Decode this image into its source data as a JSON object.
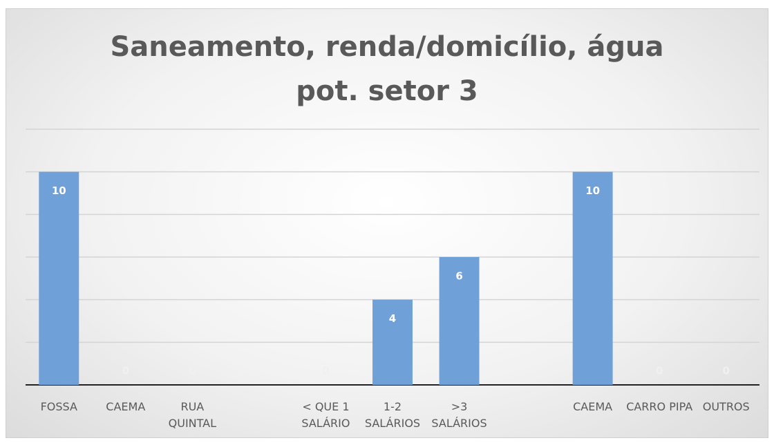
{
  "chart_data": {
    "type": "bar",
    "title": "Saneamento, renda/domicílio, água pot. setor 3",
    "categories": [
      "FOSSA",
      "CAEMA",
      "RUA QUINTAL",
      null,
      "< QUE 1 SALÁRIO",
      "1-2 SALÁRIOS",
      ">3 SALÁRIOS",
      null,
      "CAEMA",
      "CARRO PIPA",
      "OUTROS"
    ],
    "values": [
      10,
      0,
      0,
      null,
      0,
      4,
      6,
      null,
      10,
      0,
      0
    ],
    "color": "#6fa0d8",
    "ylim": [
      0,
      12
    ],
    "yticks": [
      0,
      2,
      4,
      6,
      8,
      10,
      12
    ],
    "grid": true
  }
}
